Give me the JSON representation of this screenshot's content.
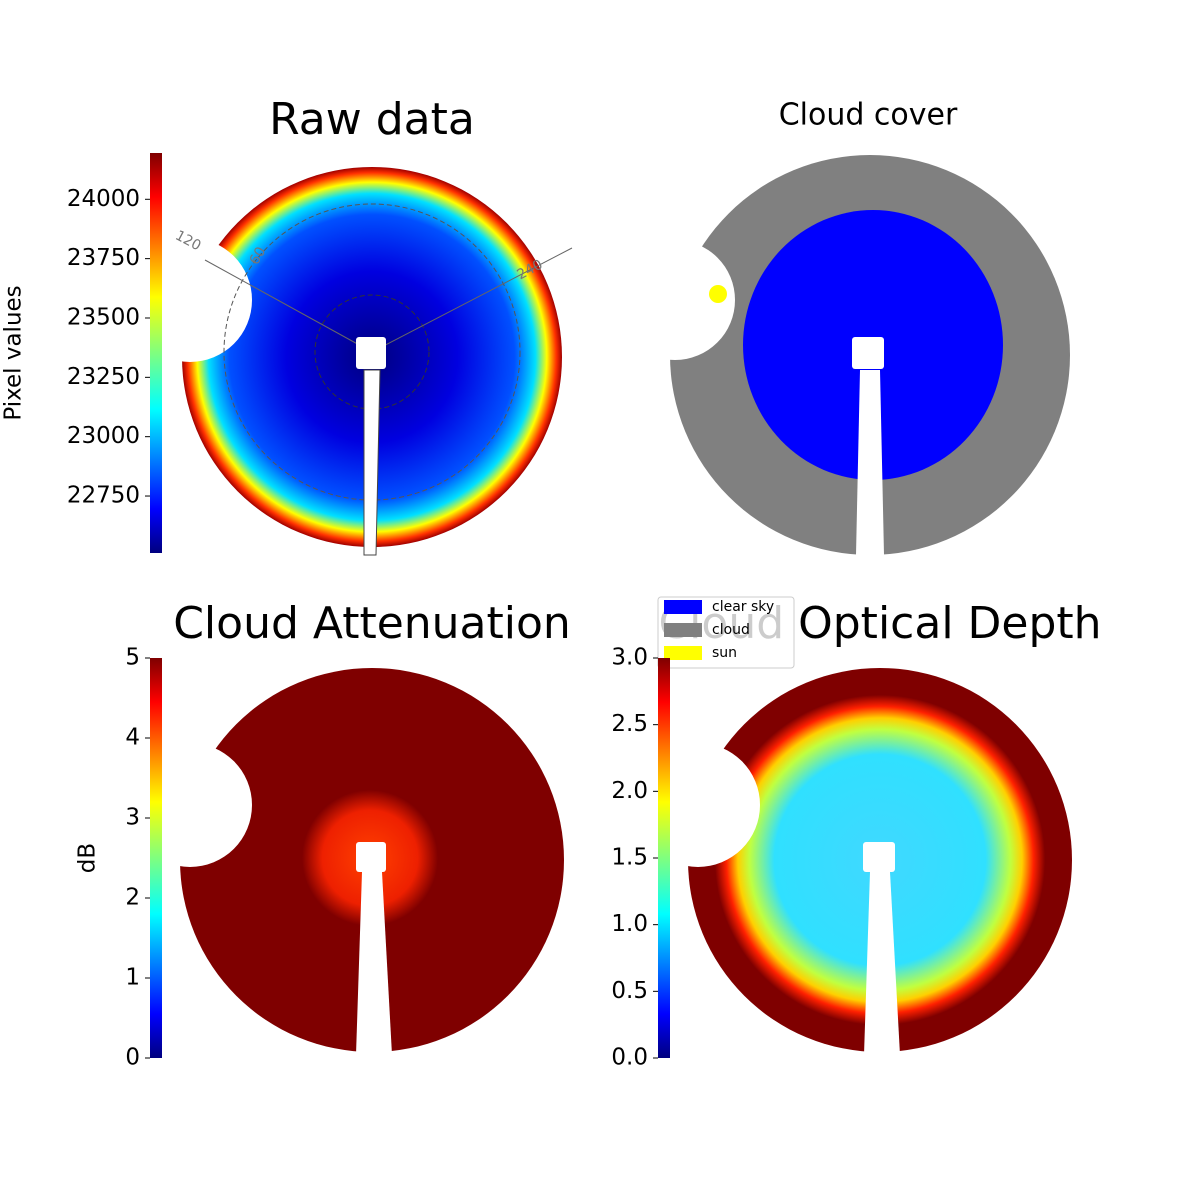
{
  "chart_data": [
    {
      "type": "heatmap",
      "title": "Raw data",
      "colorbar_label": "Pixel values",
      "colormap": "jet",
      "ylim": [
        22510,
        24195
      ],
      "yticks": [
        22750,
        23000,
        23250,
        23500,
        23750,
        24000
      ],
      "annotations": [
        "120",
        "60",
        "240"
      ]
    },
    {
      "type": "classification",
      "title": "Cloud cover",
      "legend": [
        {
          "name": "clear sky",
          "color": "#0000ff"
        },
        {
          "name": "cloud",
          "color": "#808080"
        },
        {
          "name": "sun",
          "color": "#ffff00"
        }
      ]
    },
    {
      "type": "heatmap",
      "title": "Cloud Attenuation",
      "colorbar_label": "dB",
      "colormap": "jet",
      "ylim": [
        0,
        5
      ],
      "yticks": [
        0,
        1,
        2,
        3,
        4,
        5
      ]
    },
    {
      "type": "heatmap",
      "title": "Cloud Optical Depth",
      "colormap": "jet",
      "ylim": [
        0,
        3
      ],
      "yticks": [
        {
          "value": 0,
          "label": "0.0"
        },
        {
          "value": 0.5,
          "label": "0.5"
        },
        {
          "value": 1,
          "label": "1.0"
        },
        {
          "value": 1.5,
          "label": "1.5"
        },
        {
          "value": 2,
          "label": "2.0"
        },
        {
          "value": 2.5,
          "label": "2.5"
        },
        {
          "value": 3,
          "label": "3.0"
        }
      ]
    }
  ]
}
